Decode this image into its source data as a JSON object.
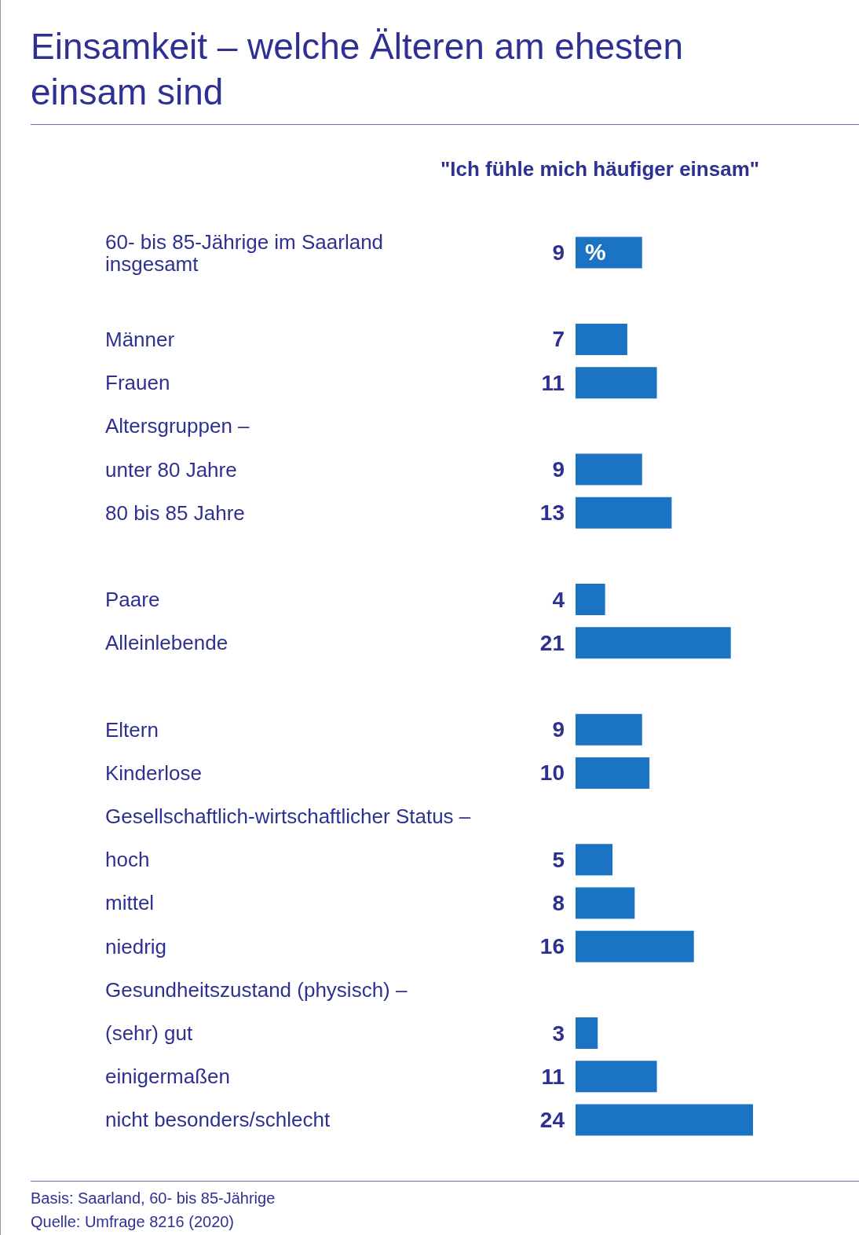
{
  "chart_data": {
    "type": "bar",
    "orientation": "horizontal",
    "tick_labels": "y",
    "data_labels": true,
    "title": "Einsamkeit – welche Älteren am ehesten einsam sind",
    "subtitle": "\"Ich fühle mich häufiger einsam\"",
    "categories": [
      "60- bis 85-Jährige im Saarland\ninsgesamt",
      null,
      "Männer",
      "Frauen",
      "Altersgruppen –",
      "unter 80 Jahre",
      "80 bis 85 Jahre",
      null,
      "Paare",
      "Alleinlebende",
      null,
      "Eltern",
      "Kinderlose",
      "Gesellschaftlich-wirtschaftlicher Status –",
      "hoch",
      "mittel",
      "niedrig",
      "Gesundheitszustand (physisch) –",
      "(sehr) gut",
      "einigermaßen",
      "nicht besonders/schlecht"
    ],
    "values": [
      9,
      null,
      7,
      11,
      null,
      9,
      13,
      null,
      4,
      21,
      null,
      9,
      10,
      null,
      5,
      8,
      16,
      null,
      3,
      11,
      24
    ],
    "color": "#1a73c3",
    "annotations": [
      {
        "text": "%",
        "y": "60- bis 85-Jährige im Saarland\ninsgesamt"
      },
      "Basis: Saarland, 60- bis 85-Jährige",
      "Quelle: Umfrage 8216 (2020)"
    ]
  }
}
